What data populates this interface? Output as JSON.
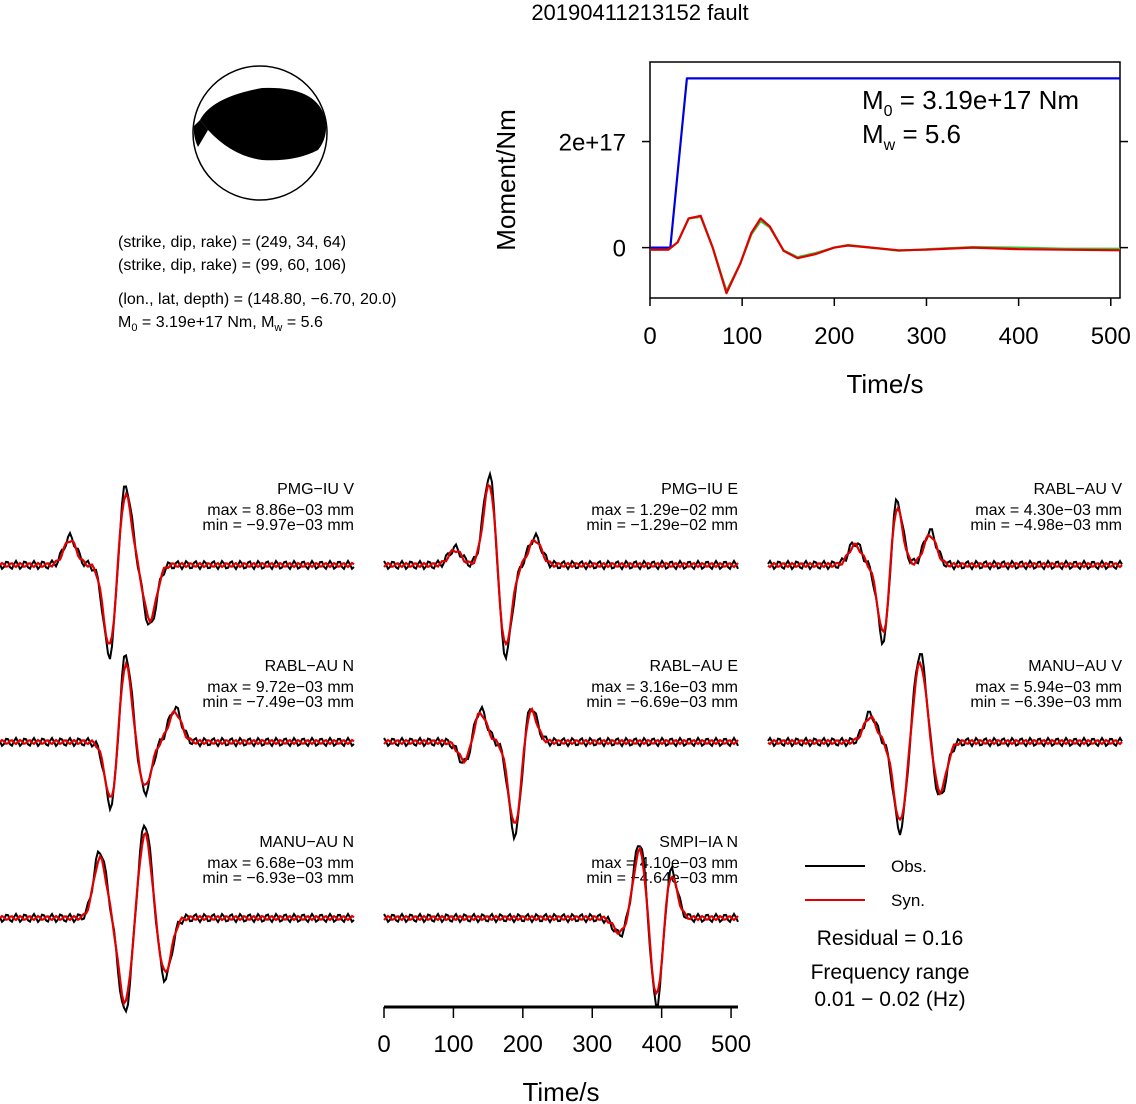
{
  "title": "20190411213152 fault",
  "colors": {
    "observed": "#000000",
    "synthetic": "#e00000",
    "moment_rate": "#3cc03c",
    "cumulative_moment": "#0000dd"
  },
  "beachball": {
    "lines": [
      "(strike, dip, rake) = (249, 34, 64)",
      "(strike, dip, rake) = (99, 60, 106)",
      "(lon., lat, depth) = (148.80, −6.70, 20.0)"
    ],
    "moment_line": {
      "m0_prefix": "M",
      "m0_sub": "0",
      "m0_value": " = 3.19e+17 Nm, M",
      "mw_sub": "w",
      "mw_value": " = 5.6"
    }
  },
  "moment_plot": {
    "m0": {
      "prefix": "M",
      "sub": "0",
      "value": " = 3.19e+17 Nm"
    },
    "mw": {
      "prefix": "M",
      "sub": "w",
      "value": " = 5.6"
    }
  },
  "waveforms": [
    {
      "station": "PMG−IU V",
      "max": "max = 8.86e−03 mm",
      "min": "min = −9.97e−03 mm"
    },
    {
      "station": "PMG−IU E",
      "max": "max = 1.29e−02 mm",
      "min": "min = −1.29e−02 mm"
    },
    {
      "station": "RABL−AU V",
      "max": "max = 4.30e−03 mm",
      "min": "min = −4.98e−03 mm"
    },
    {
      "station": "RABL−AU N",
      "max": "max = 9.72e−03 mm",
      "min": "min = −7.49e−03 mm"
    },
    {
      "station": "RABL−AU E",
      "max": "max = 3.16e−03 mm",
      "min": "min = −6.69e−03 mm"
    },
    {
      "station": "MANU−AU V",
      "max": "max = 5.94e−03 mm",
      "min": "min = −6.39e−03 mm"
    },
    {
      "station": "MANU−AU N",
      "max": "max = 6.68e−03 mm",
      "min": "min = −6.93e−03 mm"
    },
    {
      "station": "SMPI−IA N",
      "max": "max = 4.10e−03 mm",
      "min": "min = −4.64e−03 mm"
    }
  ],
  "legend": {
    "obs": "Obs.",
    "syn": "Syn."
  },
  "residual": "Residual = 0.16",
  "frequency": {
    "label": "Frequency range",
    "value": "0.01 − 0.02 (Hz)"
  },
  "chart_data": [
    {
      "type": "line",
      "title": "",
      "xlabel": "Time/s",
      "ylabel": "Moment/Nm",
      "xlim": [
        0,
        510
      ],
      "ylim": [
        -9.5e+16,
        3.5e+17
      ],
      "xticks": [
        0,
        100,
        200,
        300,
        400,
        500
      ],
      "xtick_labels": [
        "0",
        "100",
        "200",
        "300",
        "400",
        "500"
      ],
      "yticks": [
        0,
        2e+17
      ],
      "ytick_labels": [
        "0",
        "2e+17"
      ],
      "series": [
        {
          "x": [
            0,
            22,
            40,
            510
          ],
          "y": [
            0,
            0,
            3.19e+17,
            3.19e+17
          ]
        },
        {
          "x": [
            0,
            20,
            30,
            42,
            55,
            68,
            83,
            98,
            110,
            120,
            130,
            145,
            160,
            180,
            200,
            215,
            240,
            270,
            300,
            350,
            400,
            450,
            510
          ],
          "y": [
            -4000000000000000.0,
            -4000000000000000.0,
            1e+16,
            5.5e+16,
            5.8e+16,
            0.0,
            -8.2e+16,
            -3e+16,
            2.5e+16,
            5e+16,
            3.8e+16,
            -5000000000000000.0,
            -1.8e+16,
            -1e+16,
            0.0,
            5000000000000000.0,
            0.0,
            -6000000000000000.0,
            -3000000000000000.0,
            1000000000000000.0,
            0.0,
            -2000000000000000.0,
            -2000000000000000.0
          ]
        },
        {
          "x": [
            0,
            20,
            30,
            42,
            55,
            68,
            83,
            98,
            110,
            120,
            130,
            145,
            160,
            180,
            200,
            215,
            240,
            270,
            300,
            350,
            400,
            450,
            510
          ],
          "y": [
            -4000000000000000.0,
            -4000000000000000.0,
            1e+16,
            5.5e+16,
            6e+16,
            0.0,
            -8.6e+16,
            -3e+16,
            2.8e+16,
            5.5e+16,
            4e+16,
            -6000000000000000.0,
            -2e+16,
            -1.2e+16,
            0.0,
            4000000000000000.0,
            0.0,
            -5000000000000000.0,
            -4000000000000000.0,
            0.0,
            -3000000000000000.0,
            -4000000000000000.0,
            -5000000000000000.0
          ]
        }
      ]
    },
    {
      "type": "line",
      "title": "",
      "xlabel": "Time/s",
      "ylabel": "",
      "xlim": [
        0,
        510
      ],
      "xticks": [
        0,
        100,
        200,
        300,
        400,
        500
      ],
      "xtick_labels": [
        "0",
        "100",
        "200",
        "300",
        "400",
        "500"
      ],
      "note_axis": "shared waveform time axis",
      "series": []
    }
  ]
}
